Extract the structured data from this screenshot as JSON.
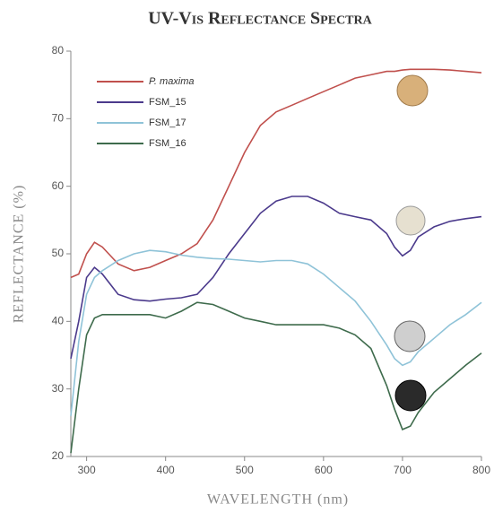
{
  "chart_data": {
    "type": "line",
    "title": "UV-Vis Reflectance Spectra",
    "x_label": "WAVELENGTH (nm)",
    "y_label": "REFLECTANCE (%)",
    "x": [
      280,
      290,
      300,
      310,
      320,
      340,
      360,
      380,
      400,
      420,
      440,
      460,
      480,
      500,
      520,
      540,
      560,
      580,
      600,
      620,
      640,
      660,
      680,
      690,
      700,
      710,
      720,
      740,
      760,
      780,
      800
    ],
    "series": [
      {
        "name": "P. maxima",
        "color": "#c0504d",
        "values": [
          46.5,
          47,
          50,
          51.7,
          51,
          48.5,
          47.5,
          48,
          49,
          50,
          51.5,
          55,
          60,
          65,
          69,
          71,
          72,
          73,
          74,
          75,
          76,
          76.5,
          77,
          77,
          77.2,
          77.3,
          77.3,
          77.3,
          77.2,
          77,
          76.8
        ]
      },
      {
        "name": "FSM_15",
        "color": "#4b3a8c",
        "values": [
          34.5,
          40,
          46.5,
          48,
          47,
          44,
          43.2,
          43,
          43.3,
          43.5,
          44,
          46.5,
          50,
          53,
          56,
          57.8,
          58.5,
          58.5,
          57.5,
          56,
          55.5,
          55,
          53,
          51,
          49.7,
          50.5,
          52.5,
          54,
          54.8,
          55.2,
          55.5
        ]
      },
      {
        "name": "FSM_17",
        "color": "#8fc3d8",
        "values": [
          26,
          37,
          44,
          46.5,
          47.5,
          49,
          50,
          50.5,
          50.3,
          49.8,
          49.5,
          49.3,
          49.2,
          49,
          48.8,
          49,
          49,
          48.5,
          47,
          45,
          43,
          40,
          36.5,
          34.5,
          33.5,
          34,
          35.5,
          37.5,
          39.5,
          41,
          42.8
        ]
      },
      {
        "name": "FSM_16",
        "color": "#3e6b4c",
        "values": [
          20.5,
          30,
          38,
          40.5,
          41,
          41,
          41,
          41,
          40.5,
          41.5,
          42.8,
          42.5,
          41.5,
          40.5,
          40,
          39.5,
          39.5,
          39.5,
          39.5,
          39,
          38,
          36,
          30.5,
          27,
          24,
          24.5,
          26.5,
          29.5,
          31.5,
          33.5,
          35.3
        ]
      }
    ],
    "xlim": [
      280,
      800
    ],
    "xticks": [
      300,
      400,
      500,
      600,
      700,
      800
    ],
    "ylim": [
      20,
      80
    ],
    "yticks": [
      20,
      30,
      40,
      50,
      60,
      70,
      80
    ],
    "grid": false
  }
}
